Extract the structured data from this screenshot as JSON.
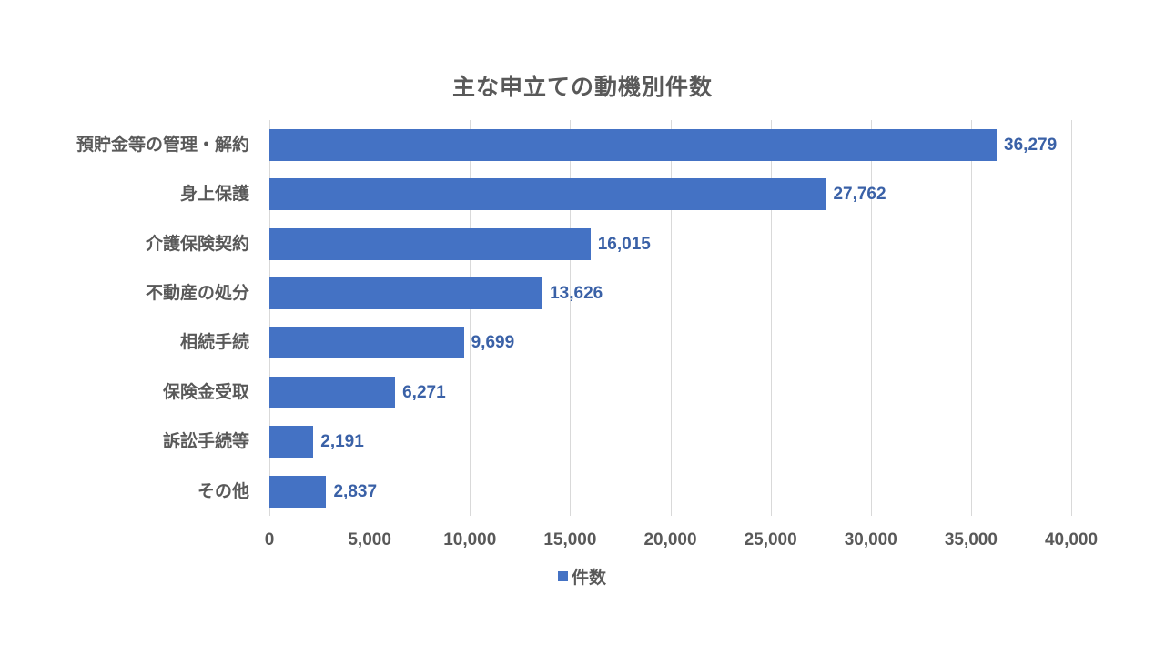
{
  "chart_data": {
    "type": "bar",
    "orientation": "horizontal",
    "title": "主な申立ての動機別件数",
    "categories": [
      "預貯金等の管理・解約",
      "身上保護",
      "介護保険契約",
      "不動産の処分",
      "相続手続",
      "保険金受取",
      "訴訟手続等",
      "その他"
    ],
    "series": [
      {
        "name": "件数",
        "color": "#4472c4",
        "values": [
          36279,
          27762,
          16015,
          13626,
          9699,
          6271,
          2191,
          2837
        ],
        "labels": [
          "36,279",
          "27,762",
          "16,015",
          "13,626",
          "9,699",
          "6,271",
          "2,191",
          "2,837"
        ]
      }
    ],
    "xlabel": "",
    "ylabel": "",
    "xlim": [
      0,
      40000
    ],
    "xticks": [
      "0",
      "5,000",
      "10,000",
      "15,000",
      "20,000",
      "25,000",
      "30,000",
      "35,000",
      "40,000"
    ],
    "grid": true,
    "legend_position": "bottom",
    "legend": [
      "件数"
    ]
  }
}
